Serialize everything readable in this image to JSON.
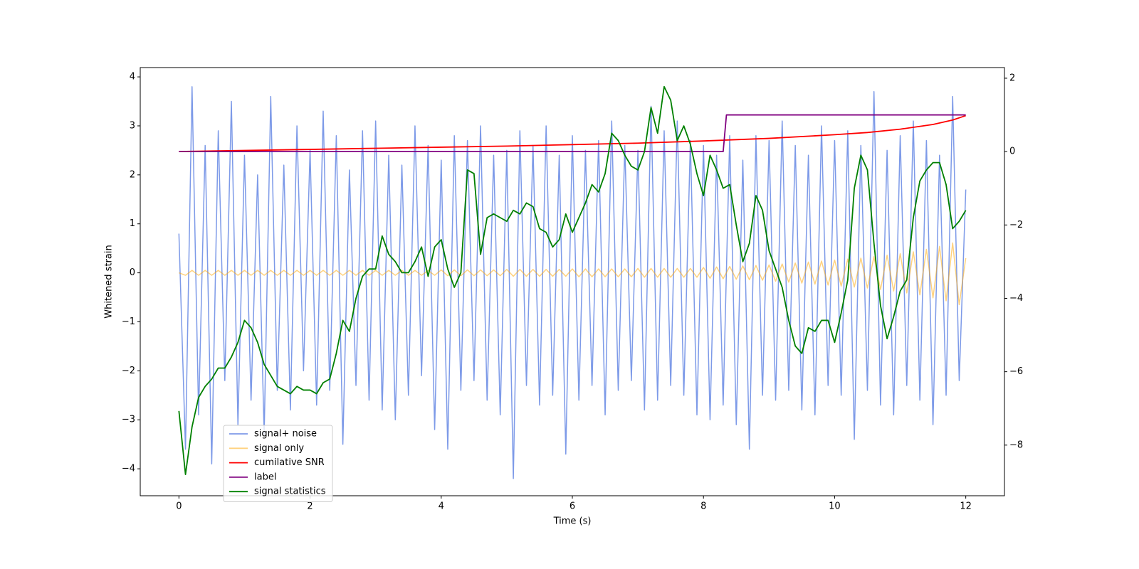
{
  "chart_data": {
    "type": "line",
    "xlabel": "Time (s)",
    "ylabel": "Whitened strain",
    "xlim": [
      -0.59,
      12.59
    ],
    "ylim": [
      -4.55,
      4.19
    ],
    "y2lim": [
      -9.38,
      2.29
    ],
    "xticks": [
      0,
      2,
      4,
      6,
      8,
      10,
      12
    ],
    "yticks": [
      {
        "value": -4,
        "label": "−4"
      },
      {
        "value": -3,
        "label": "−3"
      },
      {
        "value": -2,
        "label": "−2"
      },
      {
        "value": -1,
        "label": "−1"
      },
      0,
      1,
      2,
      3,
      4
    ],
    "y2ticks": [
      {
        "value": -8,
        "label": "−8"
      },
      {
        "value": -6,
        "label": "−6"
      },
      {
        "value": -4,
        "label": "−4"
      },
      {
        "value": -2,
        "label": "−2"
      },
      0,
      2
    ],
    "x": [
      0,
      0.1,
      0.2,
      0.3,
      0.4,
      0.5,
      0.6,
      0.7,
      0.8,
      0.9,
      1,
      1.1,
      1.2,
      1.3,
      1.4,
      1.5,
      1.6,
      1.7,
      1.8,
      1.9,
      2,
      2.1,
      2.2,
      2.3,
      2.4,
      2.5,
      2.6,
      2.7,
      2.8,
      2.9,
      3,
      3.1,
      3.2,
      3.3,
      3.4,
      3.5,
      3.6,
      3.7,
      3.8,
      3.9,
      4,
      4.1,
      4.2,
      4.3,
      4.4,
      4.5,
      4.6,
      4.7,
      4.8,
      4.9,
      5,
      5.1,
      5.2,
      5.3,
      5.4,
      5.5,
      5.6,
      5.7,
      5.8,
      5.9,
      6,
      6.1,
      6.2,
      6.3,
      6.4,
      6.5,
      6.6,
      6.7,
      6.8,
      6.9,
      7,
      7.1,
      7.2,
      7.3,
      7.4,
      7.5,
      7.6,
      7.7,
      7.8,
      7.9,
      8,
      8.1,
      8.2,
      8.3,
      8.4,
      8.5,
      8.6,
      8.7,
      8.8,
      8.9,
      9,
      9.1,
      9.2,
      9.3,
      9.4,
      9.5,
      9.6,
      9.7,
      9.8,
      9.9,
      10,
      10.1,
      10.2,
      10.3,
      10.4,
      10.5,
      10.6,
      10.7,
      10.8,
      10.9,
      11,
      11.1,
      11.2,
      11.3,
      11.4,
      11.5,
      11.6,
      11.7,
      11.8,
      11.9,
      12
    ],
    "series": [
      {
        "name": "signal+ noise",
        "color": "#6f8fe6",
        "values": [
          0.8,
          -3.6,
          3.8,
          -2.9,
          2.6,
          -3.9,
          2.9,
          -2.2,
          3.5,
          -3.1,
          2.4,
          -2.6,
          2.0,
          -3.3,
          3.6,
          -2.4,
          2.2,
          -2.8,
          3.0,
          -2.0,
          2.5,
          -2.7,
          3.3,
          -2.4,
          2.8,
          -3.5,
          2.1,
          -2.3,
          2.9,
          -2.6,
          3.1,
          -2.8,
          2.4,
          -3.0,
          2.2,
          -2.5,
          3.0,
          -2.1,
          2.6,
          -3.2,
          2.3,
          -3.6,
          2.8,
          -2.4,
          2.7,
          -2.2,
          3.0,
          -2.6,
          2.4,
          -2.9,
          2.5,
          -4.2,
          2.9,
          -2.3,
          2.6,
          -2.7,
          3.0,
          -2.5,
          2.4,
          -3.7,
          2.8,
          -2.6,
          2.5,
          -2.3,
          2.7,
          -2.9,
          3.1,
          -2.4,
          2.6,
          -2.2,
          2.5,
          -2.8,
          3.4,
          -2.6,
          2.9,
          -2.3,
          3.1,
          -2.5,
          2.7,
          -2.9,
          2.6,
          -3.0,
          2.4,
          -2.7,
          2.8,
          -3.1,
          2.3,
          -3.6,
          2.8,
          -2.5,
          2.7,
          -2.6,
          3.1,
          -2.4,
          2.6,
          -2.8,
          2.4,
          -2.9,
          3.0,
          -2.3,
          2.7,
          -2.5,
          2.9,
          -3.4,
          2.6,
          -2.4,
          3.7,
          -2.7,
          2.5,
          -2.9,
          2.8,
          -2.3,
          3.1,
          -2.6,
          2.7,
          -3.1,
          2.4,
          -2.5,
          3.6,
          -2.2,
          1.7
        ]
      },
      {
        "name": "signal only",
        "color": "#ffa500",
        "values": [
          0,
          -0.05,
          0.05,
          -0.05,
          0.05,
          -0.05,
          0.05,
          -0.05,
          0.05,
          -0.05,
          0.05,
          -0.05,
          0.05,
          -0.05,
          0.05,
          -0.05,
          0.05,
          -0.05,
          0.05,
          -0.05,
          0.05,
          -0.05,
          0.05,
          -0.05,
          0.05,
          -0.05,
          0.05,
          -0.05,
          0.05,
          -0.05,
          0.05,
          -0.05,
          0.05,
          -0.05,
          0.05,
          -0.05,
          0.05,
          -0.05,
          0.05,
          -0.05,
          0.06,
          -0.06,
          0.06,
          -0.06,
          0.06,
          -0.06,
          0.06,
          -0.06,
          0.06,
          -0.06,
          0.07,
          -0.07,
          0.07,
          -0.07,
          0.07,
          -0.07,
          0.07,
          -0.07,
          0.07,
          -0.07,
          0.08,
          -0.08,
          0.08,
          -0.08,
          0.08,
          -0.08,
          0.08,
          -0.08,
          0.08,
          -0.08,
          0.09,
          -0.09,
          0.09,
          -0.09,
          0.09,
          -0.09,
          0.09,
          -0.09,
          0.09,
          -0.09,
          0.11,
          -0.11,
          0.12,
          -0.12,
          0.13,
          -0.13,
          0.14,
          -0.14,
          0.15,
          -0.15,
          0.16,
          -0.17,
          0.18,
          -0.19,
          0.2,
          -0.21,
          0.22,
          -0.23,
          0.24,
          -0.25,
          0.26,
          -0.27,
          0.28,
          -0.29,
          0.3,
          -0.31,
          0.33,
          -0.34,
          0.36,
          -0.37,
          0.39,
          -0.41,
          0.43,
          -0.45,
          0.48,
          -0.51,
          0.54,
          -0.57,
          0.61,
          -0.65,
          0.3
        ]
      },
      {
        "name": "cumilative SNR",
        "color": "#ff0000",
        "axis": "y2",
        "x": [
          0,
          1,
          2,
          3,
          4,
          5,
          6,
          7,
          8,
          9,
          10,
          10.5,
          11,
          11.5,
          11.8,
          12
        ],
        "values": [
          0,
          0.03,
          0.06,
          0.09,
          0.12,
          0.15,
          0.19,
          0.23,
          0.29,
          0.36,
          0.46,
          0.52,
          0.61,
          0.74,
          0.86,
          0.98
        ]
      },
      {
        "name": "label",
        "color": "#800080",
        "axis": "y2",
        "x": [
          0,
          8.3,
          8.35,
          12
        ],
        "values": [
          0,
          0,
          1,
          1
        ]
      },
      {
        "name": "signal statistics",
        "color": "#008000",
        "axis": "y2",
        "values": [
          -7.07,
          -8.8,
          -7.5,
          -6.7,
          -6.4,
          -6.2,
          -5.9,
          -5.9,
          -5.6,
          -5.2,
          -4.6,
          -4.8,
          -5.2,
          -5.8,
          -6.1,
          -6.4,
          -6.5,
          -6.6,
          -6.4,
          -6.5,
          -6.5,
          -6.6,
          -6.3,
          -6.2,
          -5.5,
          -4.6,
          -4.9,
          -4.0,
          -3.4,
          -3.2,
          -3.2,
          -2.3,
          -2.8,
          -3.0,
          -3.3,
          -3.3,
          -3.0,
          -2.6,
          -3.4,
          -2.6,
          -2.4,
          -3.2,
          -3.7,
          -3.3,
          -0.5,
          -0.6,
          -2.8,
          -1.8,
          -1.7,
          -1.8,
          -1.9,
          -1.6,
          -1.7,
          -1.4,
          -1.5,
          -2.1,
          -2.2,
          -2.6,
          -2.4,
          -1.7,
          -2.2,
          -1.8,
          -1.4,
          -0.9,
          -1.1,
          -0.6,
          0.5,
          0.3,
          -0.1,
          -0.4,
          -0.5,
          0.0,
          1.2,
          0.5,
          1.77,
          1.4,
          0.3,
          0.7,
          0.2,
          -0.6,
          -1.2,
          -0.1,
          -0.5,
          -1.0,
          -0.9,
          -2.0,
          -3.0,
          -2.5,
          -1.2,
          -1.6,
          -2.7,
          -3.2,
          -3.7,
          -4.6,
          -5.3,
          -5.5,
          -4.8,
          -4.9,
          -4.6,
          -4.6,
          -5.2,
          -4.4,
          -3.5,
          -1.0,
          -0.1,
          -0.5,
          -2.5,
          -4.2,
          -5.1,
          -4.5,
          -3.8,
          -3.5,
          -1.8,
          -0.8,
          -0.5,
          -0.3,
          -0.3,
          -0.9,
          -2.1,
          -1.9,
          -1.6
        ]
      }
    ]
  }
}
